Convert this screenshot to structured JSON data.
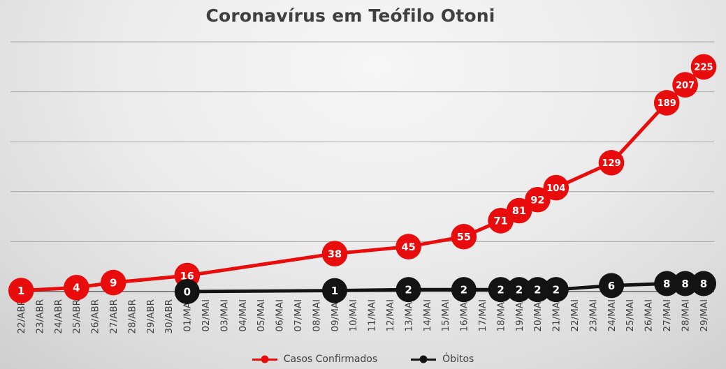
{
  "chart_data": {
    "type": "line",
    "title": "Coronavírus em Teófilo Otoni",
    "xlabel": "",
    "ylabel": "",
    "ylim": [
      0,
      250
    ],
    "gridline_values": [
      50,
      100,
      150,
      200,
      250
    ],
    "grid": true,
    "legend_position": "bottom",
    "categories": [
      "22/ABR",
      "23/ABR",
      "24/ABR",
      "25/ABR",
      "26/ABR",
      "27/ABR",
      "28/ABR",
      "29/ABR",
      "30/ABR",
      "01/MAI",
      "02/MAI",
      "03/MAI",
      "04/MAI",
      "05/MAI",
      "06/MAI",
      "07/MAI",
      "08/MAI",
      "09/MAI",
      "10/MAI",
      "11/MAI",
      "12/MAI",
      "13/MAI",
      "14/MAI",
      "15/MAI",
      "16/MAI",
      "17/MAI",
      "18/MAI",
      "19/MAI",
      "20/MAI",
      "21/MAI",
      "22/MAI",
      "23/MAI",
      "24/MAI",
      "25/MAI",
      "26/MAI",
      "27/MAI",
      "28/MAI",
      "29/MAI"
    ],
    "series": [
      {
        "name": "Casos Confirmados",
        "key": "casos-confirmados",
        "color": "#e80c0c",
        "marker_radius": 18.3,
        "line_width": 5,
        "points": [
          [
            "22/ABR",
            1
          ],
          [
            "25/ABR",
            4
          ],
          [
            "27/ABR",
            9
          ],
          [
            "01/MAI",
            16
          ],
          [
            "09/MAI",
            38
          ],
          [
            "13/MAI",
            45
          ],
          [
            "16/MAI",
            55
          ],
          [
            "18/MAI",
            71
          ],
          [
            "19/MAI",
            81
          ],
          [
            "20/MAI",
            92
          ],
          [
            "21/MAI",
            104
          ],
          [
            "24/MAI",
            129
          ],
          [
            "27/MAI",
            189
          ],
          [
            "28/MAI",
            207
          ],
          [
            "29/MAI",
            225
          ]
        ]
      },
      {
        "name": "Óbitos",
        "key": "obitos",
        "color": "#131313",
        "marker_radius": 18,
        "line_width": 4.8,
        "points": [
          [
            "01/MAI",
            0
          ],
          [
            "09/MAI",
            1
          ],
          [
            "13/MAI",
            2
          ],
          [
            "16/MAI",
            2
          ],
          [
            "18/MAI",
            2
          ],
          [
            "19/MAI",
            2
          ],
          [
            "20/MAI",
            2
          ],
          [
            "21/MAI",
            2
          ],
          [
            "24/MAI",
            6
          ],
          [
            "27/MAI",
            8
          ],
          [
            "28/MAI",
            8
          ],
          [
            "29/MAI",
            8
          ]
        ]
      }
    ],
    "style": {
      "title_color": "#3f3f3f",
      "axis_text_color": "#3f3f3f",
      "gridline_color": "#a6a6a6",
      "axis_line_color": "#5f5f5f",
      "marker_label_color": "#ffffff"
    }
  }
}
